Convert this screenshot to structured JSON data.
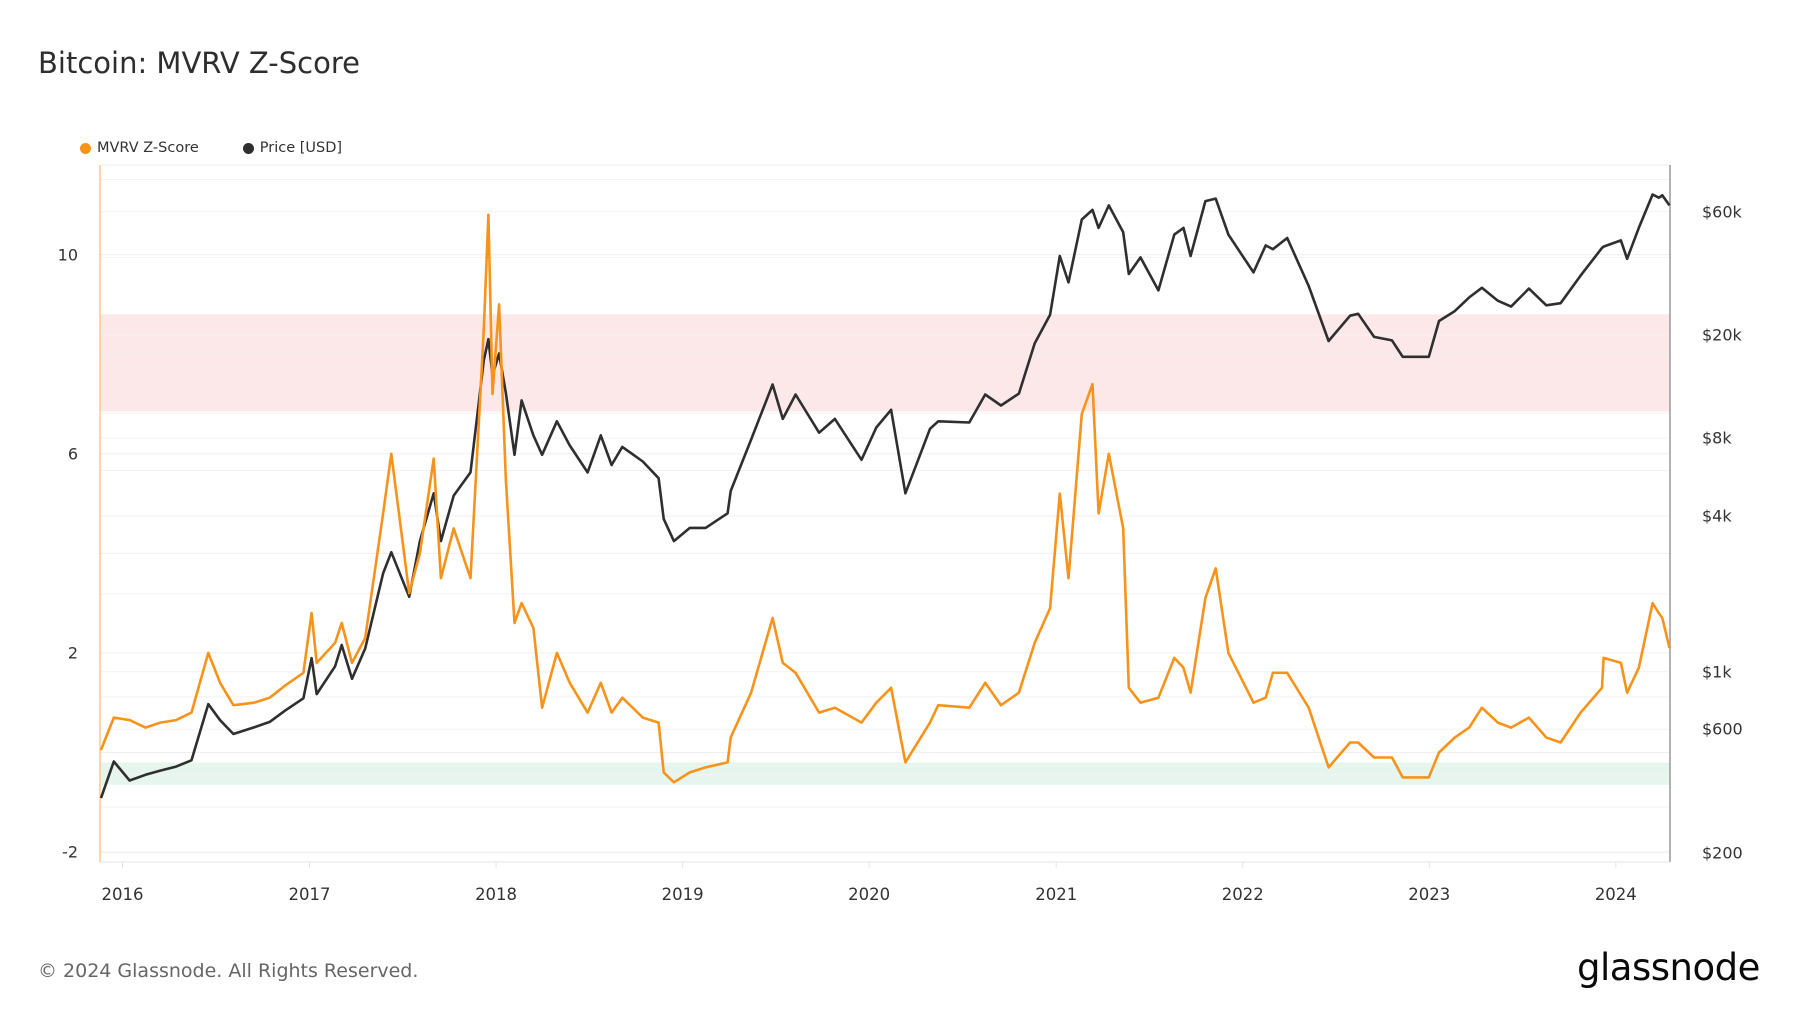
{
  "title": "Bitcoin: MVRV Z-Score",
  "footer": "© 2024 Glassnode. All Rights Reserved.",
  "logo": "glassnode",
  "chart_data": {
    "type": "line",
    "title": "Bitcoin: MVRV Z-Score",
    "legend_position": "top-left",
    "grid": true,
    "colors": {
      "mvrv": "#f7931a",
      "price": "#2f2f2f",
      "red_band": "#fce8e9",
      "green_band": "#e6f6ee"
    },
    "x_range": [
      "2015-11-18",
      "2024-04-16"
    ],
    "x_ticks": [
      "2016",
      "2017",
      "2018",
      "2019",
      "2020",
      "2021",
      "2022",
      "2023",
      "2024"
    ],
    "left_axis": {
      "ylim": [
        -2.2,
        11.8
      ],
      "ticks": [
        {
          "value": -2,
          "label": "-2"
        },
        {
          "value": 2,
          "label": "2"
        },
        {
          "value": 6,
          "label": "6"
        },
        {
          "value": 10,
          "label": "10"
        }
      ]
    },
    "right_axis": {
      "scale": "log",
      "ylim": [
        184,
        91000
      ],
      "ticks": [
        {
          "value": 200,
          "label": "$200"
        },
        {
          "value": 600,
          "label": "$600"
        },
        {
          "value": 1000,
          "label": "$1k"
        },
        {
          "value": 4000,
          "label": "$4k"
        },
        {
          "value": 8000,
          "label": "$8k"
        },
        {
          "value": 20000,
          "label": "$20k"
        },
        {
          "value": 60000,
          "label": "$60k"
        }
      ]
    },
    "bands": [
      {
        "axis": "left",
        "from": 6.85,
        "to": 8.8,
        "color": "#fce8e9"
      },
      {
        "axis": "left",
        "from": -0.65,
        "to": -0.2,
        "color": "#e6f6ee"
      }
    ],
    "dates": [
      "2015-11-20",
      "2015-12-15",
      "2016-01-15",
      "2016-02-15",
      "2016-03-15",
      "2016-04-15",
      "2016-05-15",
      "2016-06-17",
      "2016-07-10",
      "2016-08-05",
      "2016-09-15",
      "2016-10-15",
      "2016-11-15",
      "2016-12-20",
      "2017-01-05",
      "2017-01-15",
      "2017-02-20",
      "2017-03-05",
      "2017-03-25",
      "2017-04-20",
      "2017-05-25",
      "2017-06-10",
      "2017-07-15",
      "2017-08-05",
      "2017-09-01",
      "2017-09-15",
      "2017-10-10",
      "2017-11-12",
      "2017-12-08",
      "2017-12-17",
      "2017-12-25",
      "2018-01-07",
      "2018-01-20",
      "2018-02-06",
      "2018-02-20",
      "2018-03-15",
      "2018-04-01",
      "2018-04-30",
      "2018-05-25",
      "2018-06-29",
      "2018-07-25",
      "2018-08-15",
      "2018-09-05",
      "2018-10-15",
      "2018-11-15",
      "2018-11-25",
      "2018-12-15",
      "2019-01-15",
      "2019-02-15",
      "2019-03-30",
      "2019-04-05",
      "2019-05-15",
      "2019-06-26",
      "2019-07-16",
      "2019-08-10",
      "2019-09-25",
      "2019-10-26",
      "2019-12-17",
      "2020-01-15",
      "2020-02-13",
      "2020-03-12",
      "2020-04-29",
      "2020-05-15",
      "2020-07-15",
      "2020-08-15",
      "2020-09-15",
      "2020-10-20",
      "2020-11-20",
      "2020-12-20",
      "2021-01-08",
      "2021-01-25",
      "2021-02-20",
      "2021-03-13",
      "2021-03-25",
      "2021-04-14",
      "2021-05-12",
      "2021-05-23",
      "2021-06-15",
      "2021-07-20",
      "2021-08-20",
      "2021-09-07",
      "2021-09-21",
      "2021-10-20",
      "2021-11-09",
      "2021-12-04",
      "2022-01-22",
      "2022-02-15",
      "2022-03-01",
      "2022-03-29",
      "2022-05-10",
      "2022-06-18",
      "2022-07-30",
      "2022-08-15",
      "2022-09-15",
      "2022-10-20",
      "2022-11-10",
      "2022-12-31",
      "2023-01-20",
      "2023-02-20",
      "2023-03-20",
      "2023-04-14",
      "2023-05-15",
      "2023-06-10",
      "2023-07-15",
      "2023-08-18",
      "2023-09-15",
      "2023-10-24",
      "2023-12-05",
      "2023-12-08",
      "2024-01-11",
      "2024-01-23",
      "2024-02-15",
      "2024-03-13",
      "2024-03-25",
      "2024-04-01",
      "2024-04-15"
    ],
    "series": [
      {
        "name": "MVRV Z-Score",
        "axis": "left",
        "values": [
          0.05,
          0.7,
          0.65,
          0.5,
          0.6,
          0.65,
          0.8,
          2.0,
          1.4,
          0.95,
          1.0,
          1.1,
          1.35,
          1.6,
          2.8,
          1.8,
          2.2,
          2.6,
          1.8,
          2.3,
          4.8,
          6.0,
          3.2,
          4.0,
          5.9,
          3.5,
          4.5,
          3.5,
          8.5,
          10.8,
          7.2,
          9.0,
          5.5,
          2.6,
          3.0,
          2.5,
          0.9,
          2.0,
          1.4,
          0.8,
          1.4,
          0.8,
          1.1,
          0.7,
          0.6,
          -0.4,
          -0.6,
          -0.4,
          -0.3,
          -0.2,
          0.3,
          1.2,
          2.7,
          1.8,
          1.6,
          0.8,
          0.9,
          0.6,
          1.0,
          1.3,
          -0.2,
          0.6,
          0.95,
          0.9,
          1.4,
          0.95,
          1.2,
          2.2,
          2.9,
          5.2,
          3.5,
          6.8,
          7.4,
          4.8,
          6.0,
          4.5,
          1.3,
          1.0,
          1.1,
          1.9,
          1.7,
          1.2,
          3.1,
          3.7,
          2.0,
          1.0,
          1.1,
          1.6,
          1.6,
          0.9,
          -0.3,
          0.2,
          0.2,
          -0.1,
          -0.1,
          -0.5,
          -0.5,
          0.0,
          0.3,
          0.5,
          0.9,
          0.6,
          0.5,
          0.7,
          0.3,
          0.2,
          0.8,
          1.3,
          1.9,
          1.8,
          1.2,
          1.7,
          3.0,
          2.8,
          2.7,
          2.1
        ]
      },
      {
        "name": "Price [USD]",
        "axis": "right",
        "values": [
          325,
          450,
          380,
          400,
          415,
          430,
          455,
          750,
          650,
          575,
          610,
          640,
          710,
          790,
          1130,
          820,
          1050,
          1270,
          940,
          1230,
          2400,
          2900,
          1950,
          3200,
          4900,
          3200,
          4800,
          5900,
          16000,
          19300,
          14000,
          17000,
          12000,
          6900,
          11200,
          8200,
          6900,
          9300,
          7500,
          5900,
          8200,
          6300,
          7400,
          6500,
          5600,
          3900,
          3200,
          3600,
          3600,
          4100,
          5000,
          7900,
          12900,
          9500,
          11800,
          8400,
          9500,
          6600,
          8800,
          10300,
          4900,
          8700,
          9300,
          9200,
          11800,
          10700,
          11900,
          18600,
          24000,
          40500,
          32000,
          56000,
          61000,
          52000,
          63500,
          50000,
          34500,
          40000,
          29800,
          49000,
          52000,
          40500,
          66000,
          67500,
          49000,
          35000,
          44500,
          43000,
          47500,
          31000,
          19000,
          23800,
          24200,
          19700,
          19100,
          16500,
          16500,
          22700,
          24800,
          28000,
          30500,
          27200,
          25800,
          30300,
          26100,
          26600,
          34000,
          43500,
          44000,
          46500,
          39500,
          52000,
          70000,
          68000,
          69500,
          63500
        ]
      }
    ]
  }
}
